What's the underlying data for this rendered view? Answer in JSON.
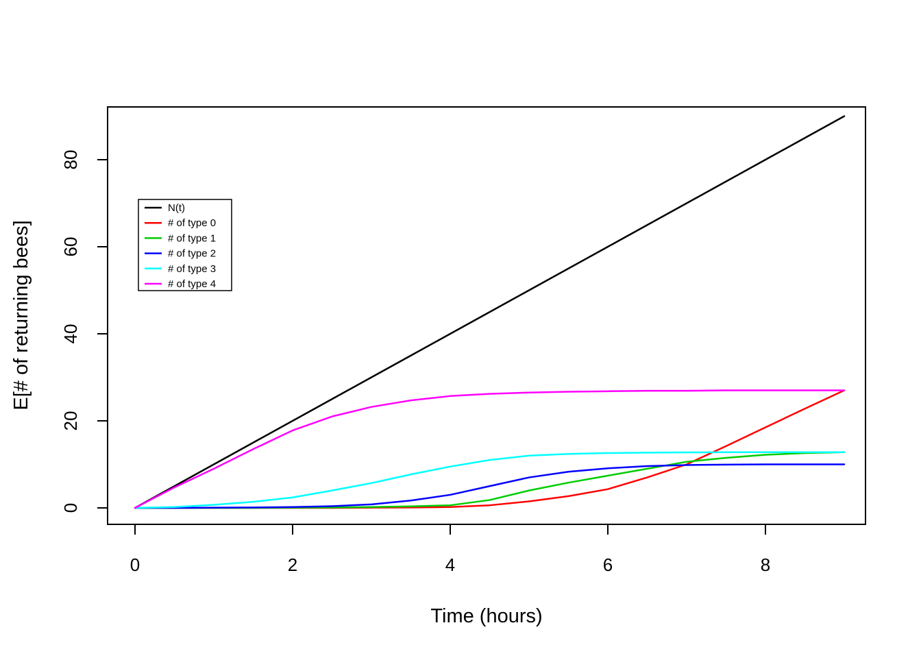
{
  "chart_data": {
    "type": "line",
    "title": "",
    "xlabel": "Time (hours)",
    "ylabel": "E[# of returning bees]",
    "x_ticks": [
      0,
      2,
      4,
      6,
      8
    ],
    "y_ticks": [
      0,
      20,
      40,
      60,
      80
    ],
    "xlim": [
      -0.36,
      9.36
    ],
    "ylim": [
      -3.8,
      92.1
    ],
    "grid": false,
    "legend_position": "upper-left-inset",
    "x": [
      0,
      0.5,
      1,
      1.5,
      2,
      2.5,
      3,
      3.5,
      4,
      4.5,
      5,
      5.5,
      6,
      6.5,
      7,
      7.5,
      8,
      8.5,
      9
    ],
    "series": [
      {
        "name": "N(t)",
        "color": "#000000",
        "values": [
          0,
          5,
          10,
          15,
          20,
          25,
          30,
          35,
          40,
          45,
          50,
          55,
          60,
          65,
          70,
          75,
          80,
          85,
          90
        ]
      },
      {
        "name": "# of type 0",
        "color": "#FF0000",
        "values": [
          0,
          0,
          0,
          0,
          0,
          0,
          0.05,
          0.1,
          0.2,
          0.6,
          1.5,
          2.7,
          4.3,
          7,
          10,
          14.2,
          18.5,
          22.8,
          27
        ]
      },
      {
        "name": "# of type 1",
        "color": "#00CC00",
        "values": [
          0,
          0,
          0,
          0,
          0.05,
          0.1,
          0.2,
          0.35,
          0.6,
          1.8,
          4,
          5.8,
          7.4,
          9,
          10.6,
          11.5,
          12.2,
          12.6,
          12.8
        ]
      },
      {
        "name": "# of type 2",
        "color": "#0000FF",
        "values": [
          0,
          0,
          0.05,
          0.1,
          0.2,
          0.4,
          0.8,
          1.7,
          3,
          5,
          7,
          8.3,
          9.1,
          9.6,
          9.85,
          9.95,
          10,
          10,
          10
        ]
      },
      {
        "name": "# of type 3",
        "color": "#00FFFF",
        "values": [
          0,
          0.2,
          0.7,
          1.4,
          2.4,
          4,
          5.7,
          7.7,
          9.5,
          11,
          12,
          12.4,
          12.6,
          12.7,
          12.75,
          12.8,
          12.8,
          12.8,
          12.8
        ]
      },
      {
        "name": "# of type 4",
        "color": "#FF00FF",
        "values": [
          0,
          4.7,
          9,
          13.5,
          17.8,
          21,
          23.2,
          24.7,
          25.7,
          26.2,
          26.5,
          26.7,
          26.8,
          26.9,
          26.9,
          27,
          27,
          27,
          27
        ]
      }
    ]
  }
}
